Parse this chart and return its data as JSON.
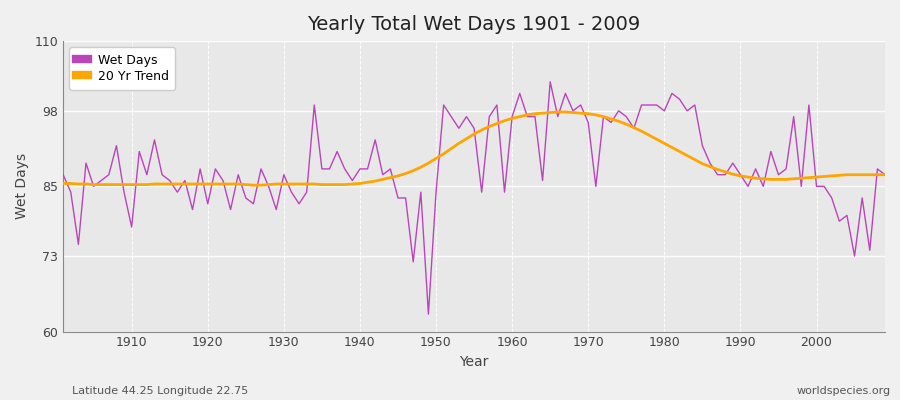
{
  "title": "Yearly Total Wet Days 1901 - 2009",
  "xlabel": "Year",
  "ylabel": "Wet Days",
  "bottom_left_label": "Latitude 44.25 Longitude 22.75",
  "bottom_right_label": "worldspecies.org",
  "ylim": [
    60,
    110
  ],
  "yticks": [
    60,
    73,
    85,
    98,
    110
  ],
  "background_color": "#f0f0f0",
  "plot_bg_color": "#e8e8e8",
  "wet_days_color": "#bb44bb",
  "trend_color": "#ffa500",
  "wet_days": [
    87,
    84,
    75,
    89,
    85,
    86,
    87,
    92,
    84,
    78,
    91,
    87,
    93,
    87,
    86,
    84,
    86,
    81,
    88,
    82,
    88,
    86,
    81,
    87,
    83,
    82,
    88,
    85,
    81,
    87,
    84,
    82,
    84,
    99,
    88,
    88,
    91,
    88,
    86,
    88,
    88,
    93,
    87,
    88,
    83,
    83,
    72,
    84,
    63,
    84,
    99,
    97,
    95,
    97,
    95,
    84,
    97,
    99,
    84,
    97,
    101,
    97,
    97,
    86,
    103,
    97,
    101,
    98,
    99,
    96,
    85,
    97,
    96,
    98,
    97,
    95,
    99,
    99,
    99,
    98,
    101,
    100,
    98,
    99,
    92,
    89,
    87,
    87,
    89,
    87,
    85,
    88,
    85,
    91,
    87,
    88,
    97,
    85,
    99,
    85,
    85,
    83,
    79,
    80,
    73,
    83,
    74,
    88,
    87
  ],
  "trend_data_years": [
    1901,
    1902,
    1903,
    1904,
    1905,
    1906,
    1907,
    1908,
    1909,
    1910,
    1911,
    1912,
    1913,
    1914,
    1915,
    1916,
    1917,
    1918,
    1919,
    1920,
    1921,
    1922,
    1923,
    1924,
    1925,
    1926,
    1927,
    1928,
    1929,
    1930,
    1931,
    1932,
    1933,
    1934,
    1935,
    1936,
    1937,
    1938,
    1939,
    1940,
    1941,
    1942,
    1943,
    1944,
    1945,
    1946,
    1947,
    1948,
    1949,
    1950,
    1951,
    1952,
    1953,
    1954,
    1955,
    1956,
    1957,
    1958,
    1959,
    1960,
    1961,
    1962,
    1963,
    1964,
    1965,
    1966,
    1967,
    1968,
    1969,
    1970,
    1971,
    1972,
    1973,
    1974,
    1975,
    1976,
    1977,
    1978,
    1979,
    1980,
    1981,
    1982,
    1983,
    1984,
    1985,
    1986,
    1987,
    1988,
    1989,
    1990,
    1991,
    1992,
    1993,
    1994,
    1995,
    1996,
    1997,
    1998,
    1999,
    2000,
    2001,
    2002,
    2003,
    2004,
    2005,
    2006,
    2007,
    2008,
    2009
  ],
  "trend_data": [
    85.5,
    85.5,
    85.4,
    85.4,
    85.3,
    85.3,
    85.3,
    85.3,
    85.3,
    85.3,
    85.3,
    85.3,
    85.4,
    85.4,
    85.4,
    85.4,
    85.4,
    85.4,
    85.4,
    85.4,
    85.4,
    85.4,
    85.4,
    85.4,
    85.3,
    85.2,
    85.2,
    85.3,
    85.4,
    85.4,
    85.4,
    85.4,
    85.4,
    85.4,
    85.3,
    85.3,
    85.3,
    85.3,
    85.4,
    85.5,
    85.7,
    85.9,
    86.2,
    86.5,
    86.8,
    87.2,
    87.7,
    88.3,
    89.0,
    89.8,
    90.6,
    91.5,
    92.4,
    93.2,
    94.0,
    94.7,
    95.3,
    95.8,
    96.3,
    96.7,
    97.0,
    97.3,
    97.5,
    97.6,
    97.7,
    97.8,
    97.8,
    97.7,
    97.6,
    97.5,
    97.3,
    97.0,
    96.6,
    96.2,
    95.7,
    95.1,
    94.5,
    93.8,
    93.1,
    92.4,
    91.7,
    91.0,
    90.3,
    89.6,
    88.9,
    88.4,
    87.9,
    87.5,
    87.1,
    86.8,
    86.6,
    86.4,
    86.3,
    86.2,
    86.2,
    86.2,
    86.3,
    86.4,
    86.5,
    86.6,
    86.7,
    86.8,
    86.9,
    87.0,
    87.0,
    87.0,
    87.0,
    87.0,
    87.0
  ]
}
